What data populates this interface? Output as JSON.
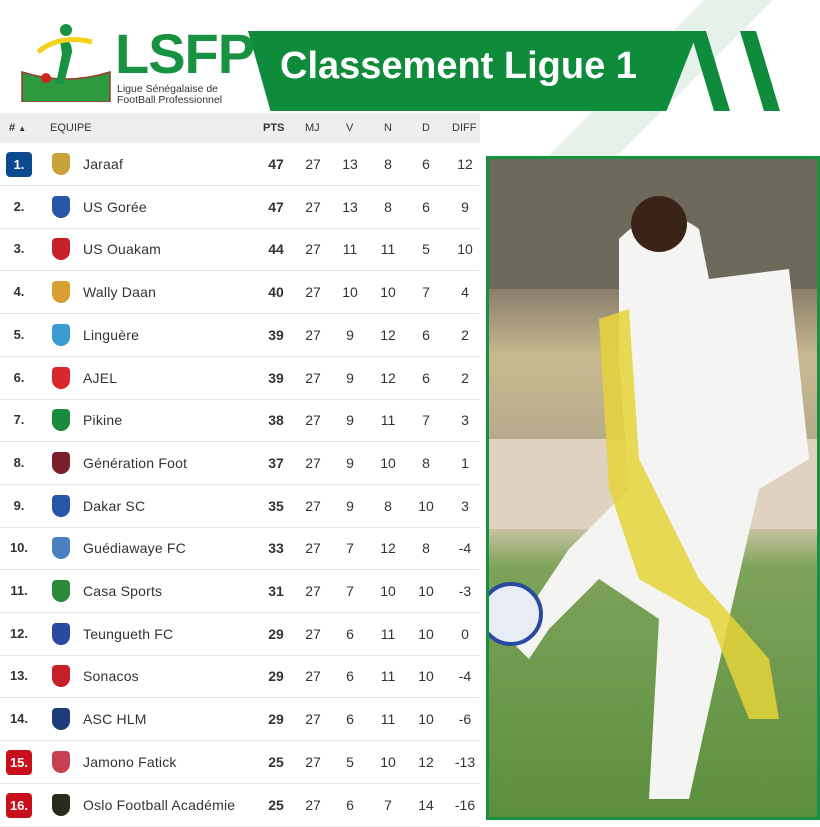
{
  "header": {
    "logo_text": "LSFP",
    "logo_subtitle_1": "Ligue Sénégalaise de",
    "logo_subtitle_2": "FootBall Professionnel",
    "title": "Classement Ligue 1"
  },
  "colors": {
    "brand_green": "#0f8c3b",
    "top_badge": "#0b4a8c",
    "relegation_badge": "#c8101c"
  },
  "table": {
    "columns": [
      "#",
      "EQUIPE",
      "PTS",
      "MJ",
      "V",
      "N",
      "D",
      "DIFF"
    ],
    "sort_icon": "sort-asc-icon",
    "rows": [
      {
        "rank": "1.",
        "team": "Jaraaf",
        "pts": "47",
        "mj": "27",
        "v": "13",
        "n": "8",
        "d": "6",
        "diff": "12",
        "badge": "top"
      },
      {
        "rank": "2.",
        "team": "US Gorée",
        "pts": "47",
        "mj": "27",
        "v": "13",
        "n": "8",
        "d": "6",
        "diff": "9"
      },
      {
        "rank": "3.",
        "team": "US Ouakam",
        "pts": "44",
        "mj": "27",
        "v": "11",
        "n": "11",
        "d": "5",
        "diff": "10"
      },
      {
        "rank": "4.",
        "team": "Wally Daan",
        "pts": "40",
        "mj": "27",
        "v": "10",
        "n": "10",
        "d": "7",
        "diff": "4"
      },
      {
        "rank": "5.",
        "team": "Linguère",
        "pts": "39",
        "mj": "27",
        "v": "9",
        "n": "12",
        "d": "6",
        "diff": "2"
      },
      {
        "rank": "6.",
        "team": "AJEL",
        "pts": "39",
        "mj": "27",
        "v": "9",
        "n": "12",
        "d": "6",
        "diff": "2"
      },
      {
        "rank": "7.",
        "team": "Pikine",
        "pts": "38",
        "mj": "27",
        "v": "9",
        "n": "11",
        "d": "7",
        "diff": "3"
      },
      {
        "rank": "8.",
        "team": "Génération Foot",
        "pts": "37",
        "mj": "27",
        "v": "9",
        "n": "10",
        "d": "8",
        "diff": "1"
      },
      {
        "rank": "9.",
        "team": "Dakar SC",
        "pts": "35",
        "mj": "27",
        "v": "9",
        "n": "8",
        "d": "10",
        "diff": "3"
      },
      {
        "rank": "10.",
        "team": "Guédiawaye FC",
        "pts": "33",
        "mj": "27",
        "v": "7",
        "n": "12",
        "d": "8",
        "diff": "-4"
      },
      {
        "rank": "11.",
        "team": "Casa Sports",
        "pts": "31",
        "mj": "27",
        "v": "7",
        "n": "10",
        "d": "10",
        "diff": "-3"
      },
      {
        "rank": "12.",
        "team": "Teungueth FC",
        "pts": "29",
        "mj": "27",
        "v": "6",
        "n": "11",
        "d": "10",
        "diff": "0"
      },
      {
        "rank": "13.",
        "team": "Sonacos",
        "pts": "29",
        "mj": "27",
        "v": "6",
        "n": "11",
        "d": "10",
        "diff": "-4"
      },
      {
        "rank": "14.",
        "team": "ASC HLM",
        "pts": "29",
        "mj": "27",
        "v": "6",
        "n": "11",
        "d": "10",
        "diff": "-6"
      },
      {
        "rank": "15.",
        "team": "Jamono Fatick",
        "pts": "25",
        "mj": "27",
        "v": "5",
        "n": "10",
        "d": "12",
        "diff": "-13",
        "badge": "relegation"
      },
      {
        "rank": "16.",
        "team": "Oslo Football Académie",
        "pts": "25",
        "mj": "27",
        "v": "6",
        "n": "7",
        "d": "14",
        "diff": "-16",
        "badge": "relegation"
      }
    ]
  }
}
